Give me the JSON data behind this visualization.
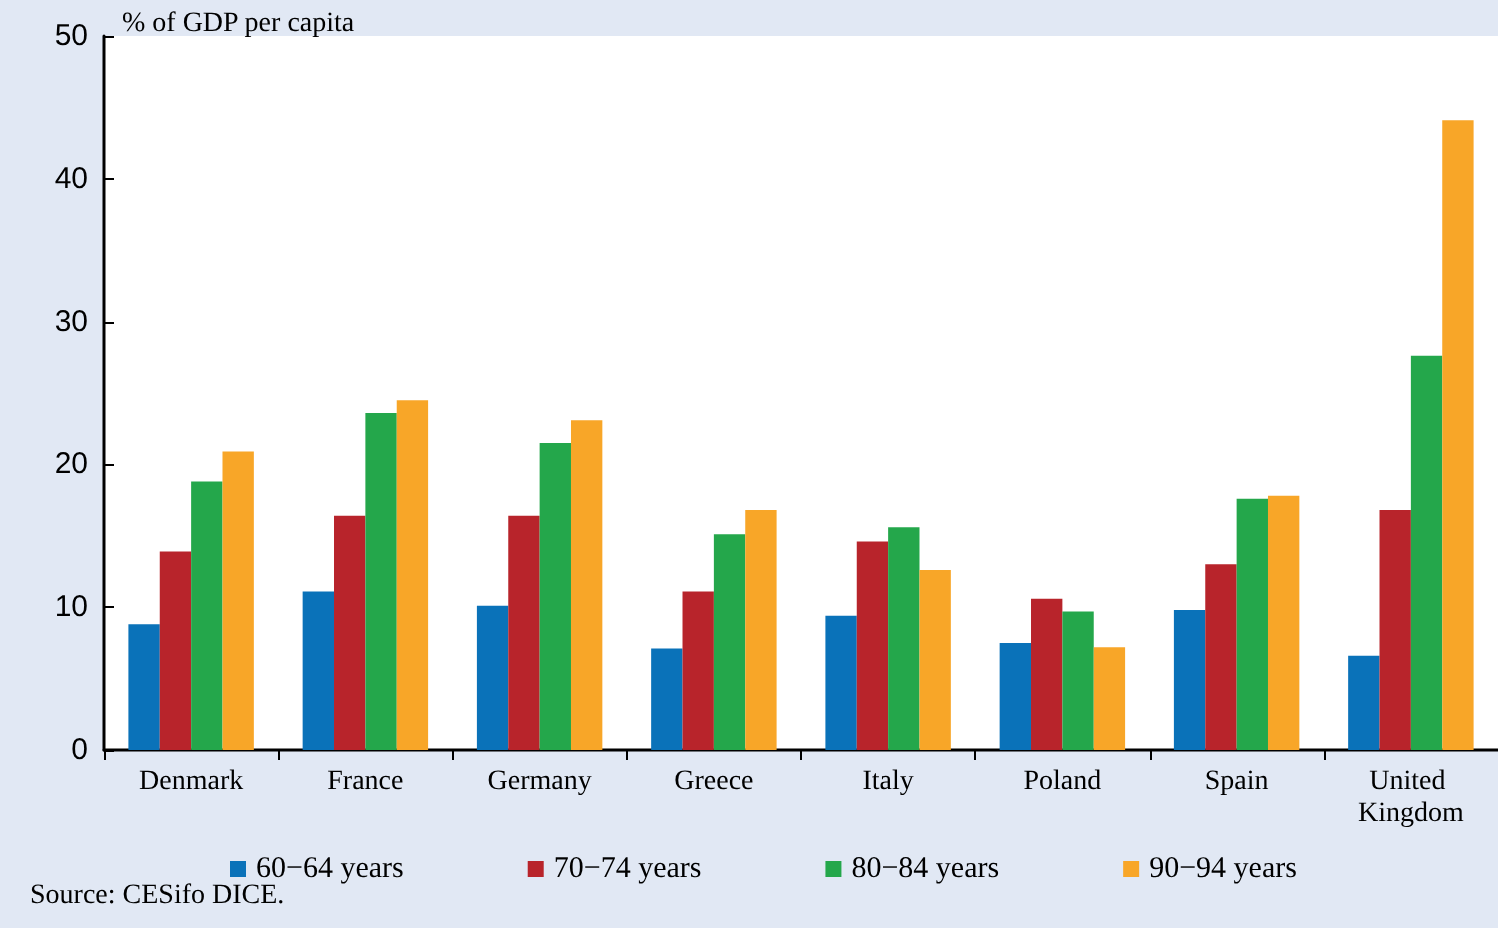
{
  "chart_data": {
    "type": "bar",
    "ylabel": "% of GDP per capita",
    "categories": [
      "Denmark",
      "France",
      "Germany",
      "Greece",
      "Italy",
      "Poland",
      "Spain",
      "United Kingdom"
    ],
    "series": [
      {
        "name": "60−64 years",
        "color": "#0a72b9",
        "values": [
          8.8,
          11.1,
          10.1,
          7.1,
          9.4,
          7.5,
          9.8,
          6.6
        ]
      },
      {
        "name": "70−74 years",
        "color": "#b8242b",
        "values": [
          13.9,
          16.4,
          16.4,
          11.1,
          14.6,
          10.6,
          13.0,
          16.8
        ]
      },
      {
        "name": "80−84 years",
        "color": "#24a74b",
        "values": [
          18.8,
          23.6,
          21.5,
          15.1,
          15.6,
          9.7,
          17.6,
          27.6
        ]
      },
      {
        "name": "90−94 years",
        "color": "#f8a628",
        "values": [
          20.9,
          24.5,
          23.1,
          16.8,
          12.6,
          7.2,
          17.8,
          44.1
        ]
      }
    ],
    "ylim": [
      0,
      50
    ],
    "yticks": [
      0,
      10,
      20,
      30,
      40,
      50
    ],
    "grid": false,
    "legend": "bottom",
    "annotations": [
      "Source: CESifo DICE."
    ]
  }
}
